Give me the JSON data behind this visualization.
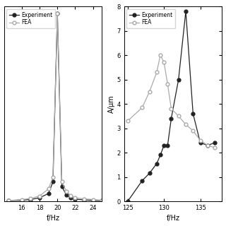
{
  "left": {
    "xlabel": "f/Hz",
    "xlim": [
      14,
      25
    ],
    "ylim": [
      0,
      5.5
    ],
    "xticks": [
      16,
      18,
      20,
      22,
      24
    ],
    "experiment_x": [
      14.5,
      16,
      17,
      18,
      19,
      19.5,
      20.0,
      20.5,
      21.0,
      21.5,
      22,
      23,
      24,
      25
    ],
    "experiment_y": [
      0.02,
      0.03,
      0.05,
      0.1,
      0.22,
      0.55,
      5.3,
      0.42,
      0.18,
      0.1,
      0.06,
      0.04,
      0.025,
      0.02
    ],
    "fea_x": [
      14.5,
      16,
      17,
      18,
      19,
      19.5,
      20.0,
      20.5,
      21.0,
      21.5,
      22,
      23,
      24,
      25
    ],
    "fea_y": [
      0.02,
      0.05,
      0.08,
      0.15,
      0.35,
      0.68,
      5.3,
      0.55,
      0.28,
      0.16,
      0.1,
      0.07,
      0.05,
      0.03
    ],
    "legend": [
      "Experiment",
      "FEA"
    ]
  },
  "right": {
    "xlabel": "f/Hz",
    "ylabel": "A/μm",
    "xlim": [
      124.5,
      138
    ],
    "ylim": [
      0,
      8
    ],
    "xticks": [
      125,
      130,
      135
    ],
    "yticks": [
      0,
      1,
      2,
      3,
      4,
      5,
      6,
      7,
      8
    ],
    "experiment_x": [
      125,
      127,
      128,
      129,
      129.5,
      130,
      130.5,
      131,
      132,
      133,
      134,
      135,
      136,
      137
    ],
    "experiment_y": [
      0.0,
      0.85,
      1.15,
      1.55,
      1.9,
      2.3,
      2.3,
      3.4,
      5.0,
      7.8,
      3.6,
      2.4,
      2.3,
      2.4
    ],
    "fea_x": [
      125,
      127,
      128,
      129,
      129.5,
      130,
      130.5,
      131,
      132,
      133,
      134,
      135,
      136,
      137
    ],
    "fea_y": [
      3.3,
      3.85,
      4.5,
      5.3,
      6.0,
      5.7,
      4.8,
      3.8,
      3.5,
      3.15,
      2.9,
      2.5,
      2.3,
      2.2
    ],
    "legend": [
      "Experiment",
      "FEA"
    ]
  },
  "exp_color": "#222222",
  "fea_color": "#aaaaaa",
  "marker_exp": "o",
  "marker_fea": "o",
  "linewidth": 0.9,
  "markersize": 3.5
}
